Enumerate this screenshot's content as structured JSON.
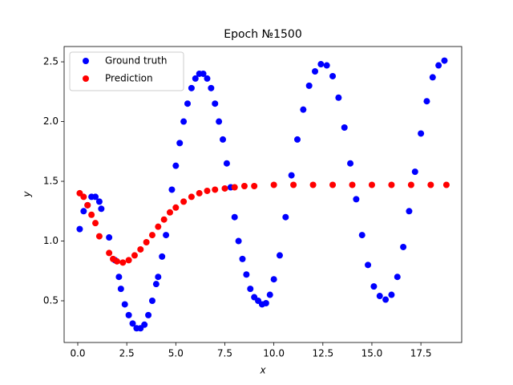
{
  "chart_data": {
    "type": "scatter",
    "title": "Epoch №1500",
    "x_label": "x",
    "y_label": "y",
    "legend": "upper left",
    "xlim": [
      -0.695,
      19.58
    ],
    "ylim": [
      0.151,
      2.628
    ],
    "xticks": [
      {
        "value": 0,
        "label": "0.0"
      },
      {
        "value": 2.5,
        "label": "2.5"
      },
      {
        "value": 5,
        "label": "5.0"
      },
      {
        "value": 7.5,
        "label": "7.5"
      },
      {
        "value": 10,
        "label": "10.0"
      },
      {
        "value": 12.5,
        "label": "12.5"
      },
      {
        "value": 15,
        "label": "15.0"
      },
      {
        "value": 17.5,
        "label": "17.5"
      }
    ],
    "yticks": [
      0.5,
      {
        "value": 1,
        "label": "1.0"
      },
      1.5,
      {
        "value": 2,
        "label": "2.0"
      },
      2.5
    ],
    "series": [
      {
        "name": "Ground truth",
        "color": "#0000ff",
        "x": [
          0.1,
          0.3,
          0.5,
          0.7,
          0.9,
          1.1,
          1.2,
          1.6,
          1.9,
          2.1,
          2.2,
          2.4,
          2.6,
          2.8,
          3.0,
          3.2,
          3.4,
          3.6,
          3.8,
          4.0,
          4.1,
          4.3,
          4.5,
          4.8,
          5.0,
          5.2,
          5.4,
          5.6,
          5.8,
          6.0,
          6.2,
          6.4,
          6.6,
          6.8,
          7.0,
          7.2,
          7.4,
          7.6,
          7.8,
          8.0,
          8.2,
          8.4,
          8.6,
          8.8,
          9.0,
          9.2,
          9.4,
          9.6,
          9.8,
          10.0,
          10.3,
          10.6,
          10.9,
          11.2,
          11.5,
          11.8,
          12.1,
          12.4,
          12.7,
          13.0,
          13.3,
          13.6,
          13.9,
          14.2,
          14.5,
          14.8,
          15.1,
          15.4,
          15.7,
          16.0,
          16.3,
          16.6,
          16.9,
          17.2,
          17.5,
          17.8,
          18.1,
          18.4,
          18.7
        ],
        "values": [
          1.1,
          1.25,
          1.3,
          1.37,
          1.37,
          1.33,
          1.27,
          1.03,
          0.84,
          0.7,
          0.6,
          0.47,
          0.38,
          0.31,
          0.27,
          0.27,
          0.3,
          0.38,
          0.5,
          0.64,
          0.7,
          0.87,
          1.05,
          1.43,
          1.63,
          1.82,
          2.0,
          2.15,
          2.28,
          2.36,
          2.4,
          2.4,
          2.36,
          2.28,
          2.15,
          2.0,
          1.85,
          1.65,
          1.45,
          1.2,
          1.0,
          0.85,
          0.72,
          0.6,
          0.53,
          0.5,
          0.47,
          0.48,
          0.55,
          0.68,
          0.88,
          1.2,
          1.55,
          1.85,
          2.1,
          2.3,
          2.42,
          2.48,
          2.47,
          2.38,
          2.2,
          1.95,
          1.65,
          1.35,
          1.05,
          0.8,
          0.62,
          0.54,
          0.51,
          0.55,
          0.7,
          0.95,
          1.25,
          1.58,
          1.9,
          2.17,
          2.37,
          2.47,
          2.51
        ]
      },
      {
        "name": "Prediction",
        "color": "#ff0000",
        "x": [
          0.1,
          0.3,
          0.5,
          0.7,
          0.9,
          1.1,
          1.6,
          1.8,
          2.0,
          2.3,
          2.6,
          2.9,
          3.2,
          3.5,
          3.8,
          4.1,
          4.4,
          4.7,
          5.0,
          5.4,
          5.8,
          6.2,
          6.6,
          7.0,
          7.5,
          8.0,
          8.5,
          9.0,
          10,
          11,
          12,
          13,
          14,
          15,
          16,
          17,
          18,
          18.8
        ],
        "values": [
          1.4,
          1.37,
          1.3,
          1.22,
          1.15,
          1.04,
          0.9,
          0.85,
          0.83,
          0.82,
          0.84,
          0.88,
          0.93,
          0.99,
          1.05,
          1.12,
          1.18,
          1.24,
          1.28,
          1.33,
          1.37,
          1.4,
          1.42,
          1.43,
          1.44,
          1.45,
          1.46,
          1.46,
          1.47,
          1.47,
          1.47,
          1.47,
          1.47,
          1.47,
          1.47,
          1.47,
          1.47,
          1.47
        ]
      }
    ]
  }
}
